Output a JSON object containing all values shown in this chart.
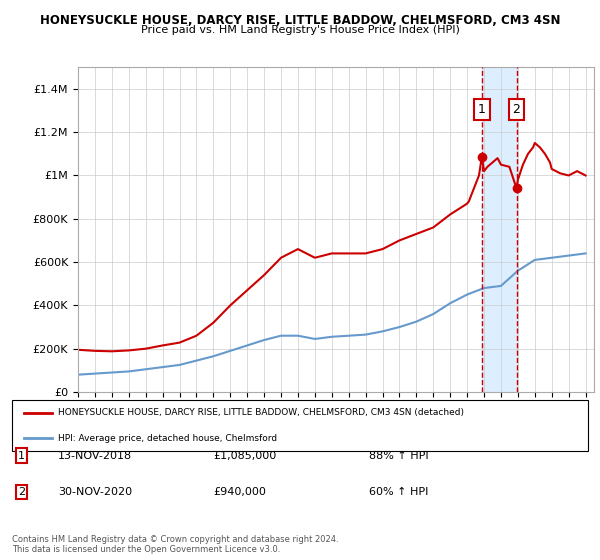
{
  "title": "HONEYSUCKLE HOUSE, DARCY RISE, LITTLE BADDOW, CHELMSFORD, CM3 4SN",
  "subtitle": "Price paid vs. HM Land Registry's House Price Index (HPI)",
  "legend_line1": "HONEYSUCKLE HOUSE, DARCY RISE, LITTLE BADDOW, CHELMSFORD, CM3 4SN (detached)",
  "legend_line2": "HPI: Average price, detached house, Chelmsford",
  "annotation1_label": "1",
  "annotation1_date": "13-NOV-2018",
  "annotation1_price": "£1,085,000",
  "annotation1_hpi": "88% ↑ HPI",
  "annotation2_label": "2",
  "annotation2_date": "30-NOV-2020",
  "annotation2_price": "£940,000",
  "annotation2_hpi": "60% ↑ HPI",
  "footer": "Contains HM Land Registry data © Crown copyright and database right 2024.\nThis data is licensed under the Open Government Licence v3.0.",
  "red_color": "#cc0000",
  "blue_color": "#6699cc",
  "shade_color": "#ddeeff",
  "marker1_x": 2018.87,
  "marker2_x": 2020.92,
  "marker1_y": 1085000,
  "marker2_y": 940000,
  "ylim": [
    0,
    1500000
  ],
  "xlim": [
    1995,
    2025.5
  ],
  "red_x": [
    1995,
    1996,
    1997,
    1998,
    1999,
    2000,
    2001,
    2002,
    2003,
    2004,
    2005,
    2006,
    2007,
    2008,
    2009,
    2010,
    2011,
    2012,
    2013,
    2014,
    2015,
    2016,
    2017,
    2018,
    2018.1,
    2018.2,
    2018.3,
    2018.4,
    2018.5,
    2018.6,
    2018.7,
    2018.87,
    2019,
    2019.2,
    2019.5,
    2019.8,
    2020,
    2020.5,
    2020.92,
    2021,
    2021.3,
    2021.6,
    2021.9,
    2022,
    2022.3,
    2022.6,
    2022.9,
    2023,
    2023.5,
    2024,
    2024.5,
    2025
  ],
  "red_y": [
    195000,
    190000,
    188000,
    192000,
    200000,
    215000,
    228000,
    260000,
    320000,
    400000,
    470000,
    540000,
    620000,
    660000,
    620000,
    640000,
    640000,
    640000,
    660000,
    700000,
    730000,
    760000,
    820000,
    870000,
    880000,
    900000,
    920000,
    940000,
    960000,
    980000,
    1000000,
    1085000,
    1020000,
    1040000,
    1060000,
    1080000,
    1050000,
    1040000,
    940000,
    980000,
    1050000,
    1100000,
    1130000,
    1150000,
    1130000,
    1100000,
    1060000,
    1030000,
    1010000,
    1000000,
    1020000,
    1000000
  ],
  "blue_x": [
    1995,
    1996,
    1997,
    1998,
    1999,
    2000,
    2001,
    2002,
    2003,
    2004,
    2005,
    2006,
    2007,
    2008,
    2009,
    2010,
    2011,
    2012,
    2013,
    2014,
    2015,
    2016,
    2017,
    2018,
    2019,
    2020,
    2021,
    2022,
    2023,
    2024,
    2025
  ],
  "blue_y": [
    80000,
    85000,
    90000,
    95000,
    105000,
    115000,
    125000,
    145000,
    165000,
    190000,
    215000,
    240000,
    260000,
    260000,
    245000,
    255000,
    260000,
    265000,
    280000,
    300000,
    325000,
    360000,
    410000,
    450000,
    480000,
    490000,
    560000,
    610000,
    620000,
    630000,
    640000
  ]
}
